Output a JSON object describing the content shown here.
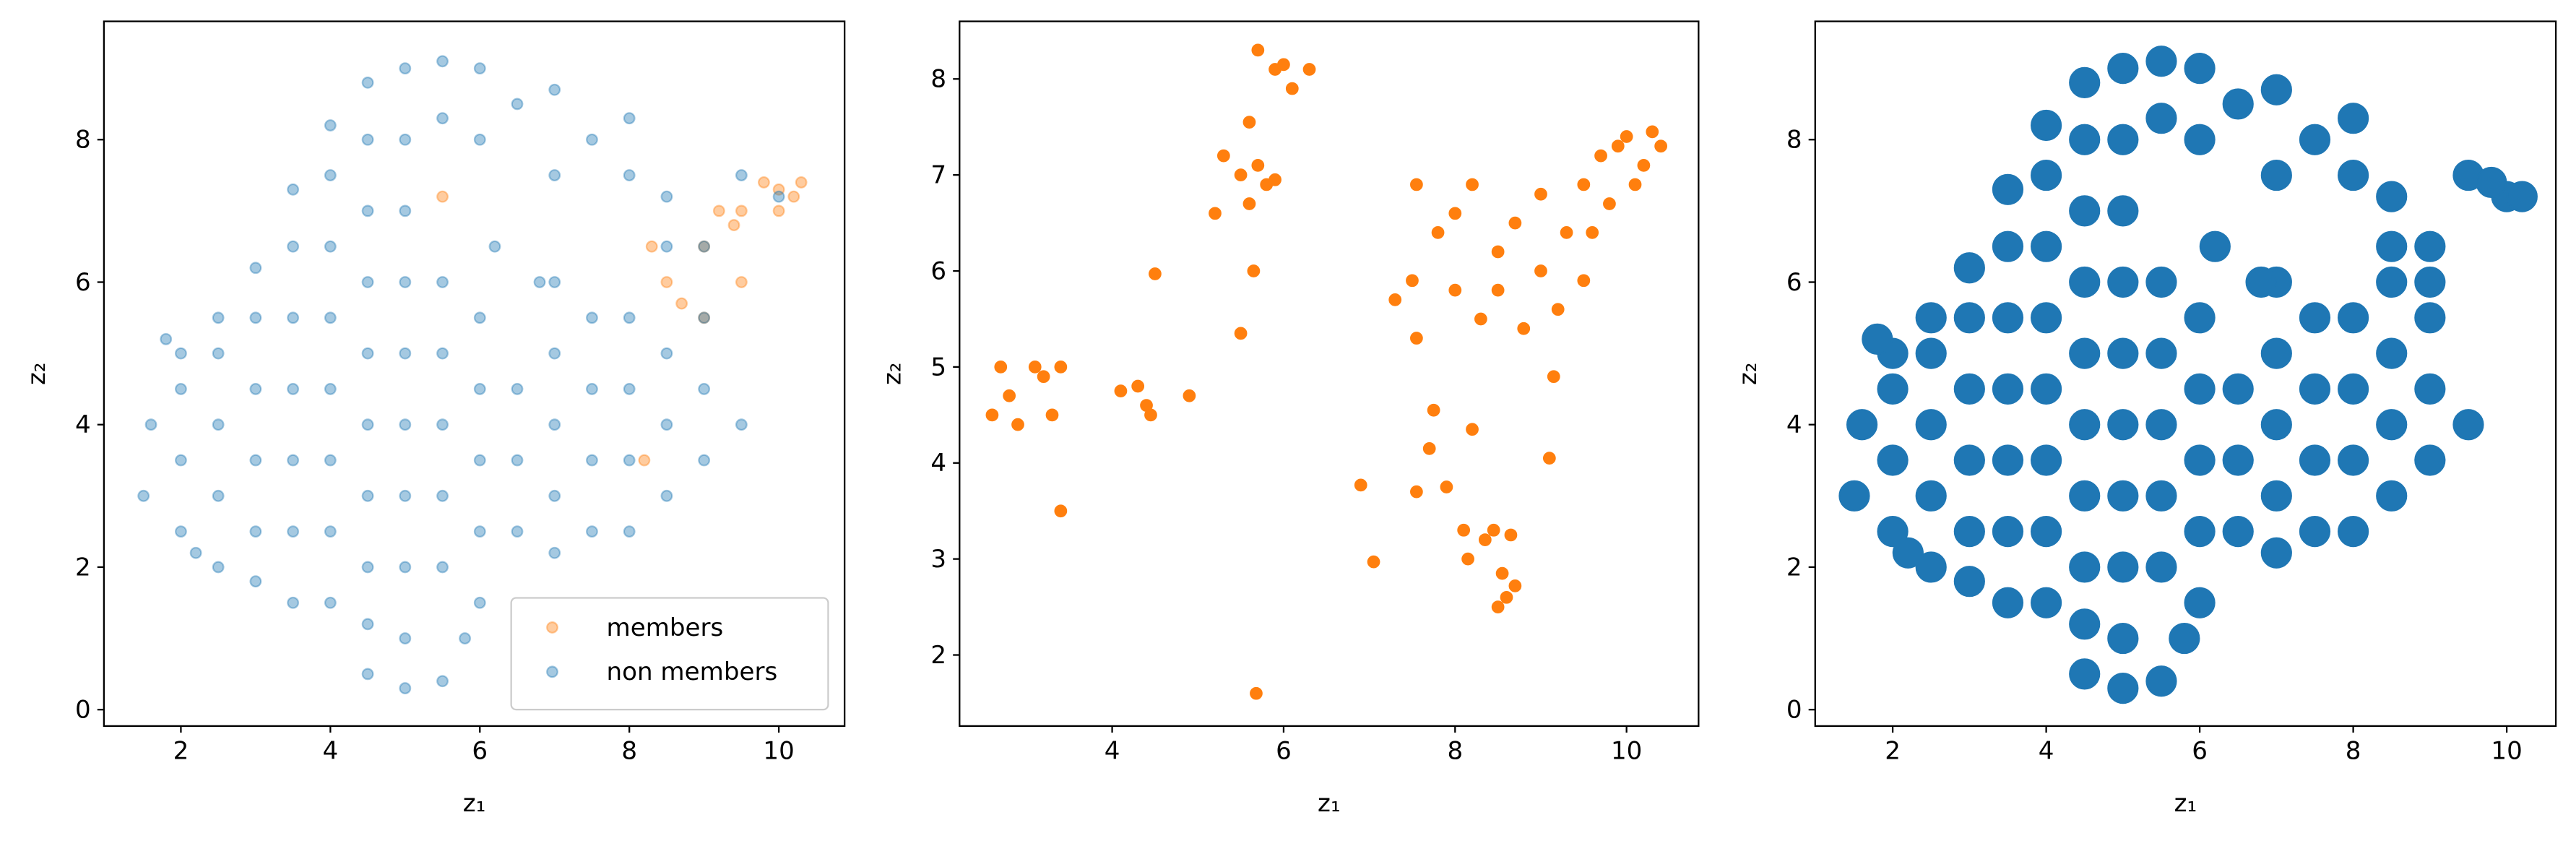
{
  "chart_data": [
    {
      "type": "scatter",
      "xlabel": "z₁",
      "ylabel": "z₂",
      "xlim": [
        0.97,
        10.88
      ],
      "ylim": [
        -0.23,
        9.66
      ],
      "xticks": [
        2,
        4,
        6,
        8,
        10
      ],
      "yticks": [
        0,
        2,
        4,
        6,
        8
      ],
      "legend": "lower right",
      "alpha": 0.4,
      "series": [
        {
          "name": "members",
          "color": "#ff7f0e",
          "x": [
            8.5,
            9,
            9.5,
            10,
            10.3,
            9,
            8.3,
            9.5,
            10,
            9.2,
            8.7,
            5.5,
            8.2,
            9.8,
            10.2,
            9.4
          ],
          "y": [
            6,
            6.5,
            7,
            7.3,
            7.4,
            5.5,
            6.5,
            6,
            7,
            7,
            5.7,
            7.2,
            3.5,
            7.4,
            7.2,
            6.8
          ]
        },
        {
          "name": "non members",
          "color": "#1f77b4",
          "x": [
            4.5,
            5,
            5.5,
            5,
            4.5,
            5.8,
            6,
            3.5,
            4,
            3,
            1.5,
            1.6,
            2,
            2,
            2,
            2,
            2.5,
            2.5,
            2.5,
            2.5,
            2.5,
            3,
            3,
            3,
            3,
            3,
            3.5,
            3.5,
            3.5,
            3.5,
            3.5,
            3.5,
            4,
            4,
            4,
            4,
            4,
            4,
            4,
            4.5,
            4.5,
            4.5,
            4.5,
            4.5,
            4.5,
            4.5,
            4.5,
            5,
            5,
            5,
            5,
            5,
            5,
            5,
            5,
            5.5,
            5.5,
            5.5,
            5.5,
            5.5,
            5.5,
            5.5,
            6,
            6,
            6,
            6,
            6,
            6,
            6.5,
            6.5,
            6.5,
            6.5,
            7,
            7,
            7,
            7,
            7,
            7,
            7,
            7.5,
            7.5,
            7.5,
            7.5,
            7.5,
            8,
            8,
            8,
            8,
            8,
            8,
            8.5,
            8.5,
            8.5,
            8.5,
            8.5,
            9,
            9,
            9,
            9,
            9.5,
            9.5,
            10,
            1.8,
            2.2,
            6.2,
            6.8
          ],
          "y": [
            0.5,
            0.3,
            0.4,
            1,
            1.2,
            1,
            1.5,
            1.5,
            1.5,
            1.8,
            3,
            4,
            2.5,
            3.5,
            4.5,
            5,
            2,
            3,
            4,
            5,
            5.5,
            2.5,
            3.5,
            4.5,
            5.5,
            6.2,
            2.5,
            3.5,
            4.5,
            5.5,
            6.5,
            7.3,
            2.5,
            3.5,
            4.5,
            5.5,
            6.5,
            7.5,
            8.2,
            2,
            3,
            4,
            5,
            6,
            7,
            8,
            8.8,
            2,
            3,
            4,
            5,
            6,
            7,
            8,
            9,
            2,
            3,
            4,
            5,
            6,
            8.3,
            9.1,
            2.5,
            3.5,
            4.5,
            5.5,
            8,
            9,
            2.5,
            3.5,
            4.5,
            8.5,
            2.2,
            3,
            4,
            5,
            6,
            7.5,
            8.7,
            2.5,
            3.5,
            4.5,
            5.5,
            8,
            2.5,
            3.5,
            4.5,
            5.5,
            7.5,
            8.3,
            3,
            4,
            5,
            6.5,
            7.2,
            3.5,
            4.5,
            5.5,
            6.5,
            4,
            7.5,
            7.2,
            5.2,
            2.2,
            6.5,
            6
          ]
        }
      ]
    },
    {
      "type": "scatter",
      "xlabel": "z₁",
      "ylabel": "z₂",
      "xlim": [
        2.22,
        10.84
      ],
      "ylim": [
        1.26,
        8.6
      ],
      "xticks": [
        4,
        6,
        8,
        10
      ],
      "yticks": [
        2,
        3,
        4,
        5,
        6,
        7,
        8
      ],
      "series": [
        {
          "color": "#ff7f0e",
          "x": [
            2.6,
            2.7,
            2.8,
            2.9,
            3.1,
            3.2,
            3.3,
            3.4,
            3.4,
            4.1,
            4.3,
            4.4,
            4.45,
            4.5,
            4.9,
            5.2,
            5.3,
            5.5,
            5.5,
            5.6,
            5.6,
            5.65,
            5.7,
            5.7,
            5.8,
            5.9,
            5.9,
            6,
            6.1,
            6.3,
            5.68,
            6.9,
            7.05,
            7.3,
            7.5,
            7.55,
            7.55,
            7.55,
            7.7,
            7.75,
            7.9,
            8.1,
            8.15,
            8.2,
            8.35,
            8.45,
            8.5,
            8.55,
            8.6,
            8.65,
            8.7,
            9.15,
            9.1,
            7.8,
            8,
            8,
            8.2,
            8.3,
            8.5,
            8.5,
            8.7,
            8.8,
            9,
            9,
            9.2,
            9.3,
            9.5,
            9.5,
            9.7,
            9.8,
            10,
            10.2,
            10.3,
            10.1,
            9.9,
            10.4,
            9.6
          ],
          "y": [
            4.5,
            5,
            4.7,
            4.4,
            5,
            4.9,
            4.5,
            5,
            3.5,
            4.75,
            4.8,
            4.6,
            4.5,
            5.97,
            4.7,
            6.6,
            7.2,
            5.35,
            7,
            7.55,
            6.7,
            6,
            7.1,
            8.3,
            6.9,
            6.95,
            8.1,
            8.15,
            7.9,
            8.1,
            1.6,
            3.77,
            2.97,
            5.7,
            5.9,
            5.3,
            6.9,
            3.7,
            4.15,
            4.55,
            3.75,
            3.3,
            3,
            4.35,
            3.2,
            3.3,
            2.5,
            2.85,
            2.6,
            3.25,
            2.72,
            4.9,
            4.05,
            6.4,
            6.6,
            5.8,
            6.9,
            5.5,
            6.2,
            5.8,
            6.5,
            5.4,
            6,
            6.8,
            5.6,
            6.4,
            6.9,
            5.9,
            7.2,
            6.7,
            7.4,
            7.1,
            7.45,
            6.9,
            7.3,
            7.3,
            6.4
          ]
        }
      ]
    },
    {
      "type": "scatter",
      "xlabel": "z₁",
      "ylabel": "z₂",
      "xlim": [
        0.99,
        10.64
      ],
      "ylim": [
        -0.23,
        9.66
      ],
      "xticks": [
        2,
        4,
        6,
        8,
        10
      ],
      "yticks": [
        0,
        2,
        4,
        6,
        8
      ],
      "series": [
        {
          "color": "#1f77b4",
          "x": [
            4.5,
            5,
            5.5,
            5,
            4.5,
            5.8,
            6,
            3.5,
            4,
            3,
            1.5,
            1.6,
            2,
            2,
            2,
            2,
            2.5,
            2.5,
            2.5,
            2.5,
            2.5,
            3,
            3,
            3,
            3,
            3,
            3.5,
            3.5,
            3.5,
            3.5,
            3.5,
            3.5,
            4,
            4,
            4,
            4,
            4,
            4,
            4,
            4.5,
            4.5,
            4.5,
            4.5,
            4.5,
            4.5,
            4.5,
            4.5,
            5,
            5,
            5,
            5,
            5,
            5,
            5,
            5,
            5.5,
            5.5,
            5.5,
            5.5,
            5.5,
            5.5,
            5.5,
            6,
            6,
            6,
            6,
            6,
            6,
            6.5,
            6.5,
            6.5,
            6.5,
            7,
            7,
            7,
            7,
            7,
            7,
            7,
            7.5,
            7.5,
            7.5,
            7.5,
            7.5,
            8,
            8,
            8,
            8,
            8,
            8,
            8.5,
            8.5,
            8.5,
            8.5,
            8.5,
            9,
            9,
            9,
            9,
            9.5,
            9.5,
            10,
            1.8,
            2.2,
            6.2,
            6.8,
            9.8,
            10.2,
            8.5,
            9
          ],
          "y": [
            0.5,
            0.3,
            0.4,
            1,
            1.2,
            1,
            1.5,
            1.5,
            1.5,
            1.8,
            3,
            4,
            2.5,
            3.5,
            4.5,
            5,
            2,
            3,
            4,
            5,
            5.5,
            2.5,
            3.5,
            4.5,
            5.5,
            6.2,
            2.5,
            3.5,
            4.5,
            5.5,
            6.5,
            7.3,
            2.5,
            3.5,
            4.5,
            5.5,
            6.5,
            7.5,
            8.2,
            2,
            3,
            4,
            5,
            6,
            7,
            8,
            8.8,
            2,
            3,
            4,
            5,
            6,
            7,
            8,
            9,
            2,
            3,
            4,
            5,
            6,
            8.3,
            9.1,
            2.5,
            3.5,
            4.5,
            5.5,
            8,
            9,
            2.5,
            3.5,
            4.5,
            8.5,
            2.2,
            3,
            4,
            5,
            6,
            7.5,
            8.7,
            2.5,
            3.5,
            4.5,
            5.5,
            8,
            2.5,
            3.5,
            4.5,
            5.5,
            7.5,
            8.3,
            3,
            4,
            5,
            6.5,
            7.2,
            3.5,
            4.5,
            5.5,
            6.5,
            4,
            7.5,
            7.2,
            5.2,
            2.2,
            6.5,
            6,
            7.4,
            7.2,
            6,
            6
          ]
        }
      ]
    }
  ]
}
